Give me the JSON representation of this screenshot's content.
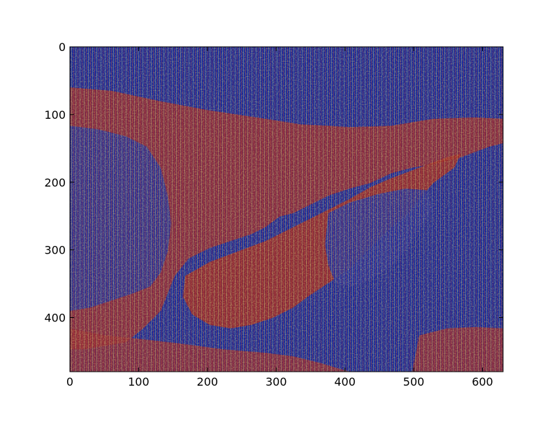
{
  "chart_data": {
    "type": "heatmap",
    "title": "",
    "xlabel": "",
    "ylabel": "",
    "colormap": "jet",
    "image_shape": {
      "rows": 480,
      "cols": 630
    },
    "xlim": [
      0,
      630
    ],
    "ylim": [
      480,
      0
    ],
    "x_ticks": [
      0,
      100,
      200,
      300,
      400,
      500,
      600
    ],
    "y_ticks": [
      0,
      100,
      200,
      300,
      400
    ],
    "x_tick_labels": [
      "0",
      "100",
      "200",
      "300",
      "400",
      "500",
      "600"
    ],
    "y_tick_labels": [
      "0",
      "100",
      "200",
      "300",
      "400"
    ],
    "description_colors": {
      "background_blue": "#1a2a9a",
      "texture_red": "#c0281a",
      "texture_yellow": "#e6d23a",
      "texture_cyan": "#3ec4d6"
    }
  }
}
